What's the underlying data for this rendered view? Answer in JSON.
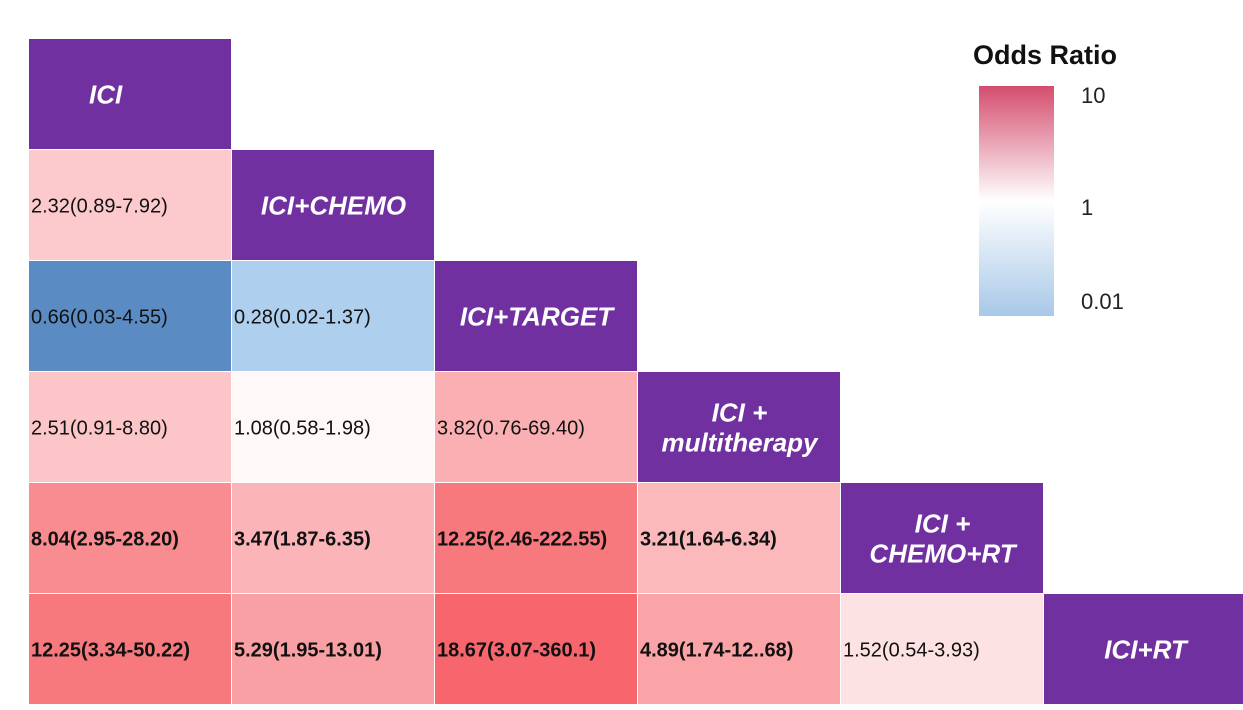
{
  "chart_data": {
    "type": "heatmap",
    "title": "",
    "treatments": [
      [
        "ICI"
      ],
      [
        "ICI+CHEMO"
      ],
      [
        "ICI+TARGET"
      ],
      [
        "ICI +",
        "multitherapy"
      ],
      [
        "ICI +",
        "CHEMO+RT"
      ],
      [
        "ICI+RT"
      ]
    ],
    "cells": [
      {
        "row": 1,
        "col": 0,
        "label": "2.32(0.89-7.92)",
        "or": 2.32,
        "bold": false
      },
      {
        "row": 2,
        "col": 0,
        "label": "0.66(0.03-4.55)",
        "or": 0.66,
        "bold": false,
        "color": "#5b8bc3"
      },
      {
        "row": 2,
        "col": 1,
        "label": "0.28(0.02-1.37)",
        "or": 0.28,
        "bold": false
      },
      {
        "row": 3,
        "col": 0,
        "label": "2.51(0.91-8.80)",
        "or": 2.51,
        "bold": false
      },
      {
        "row": 3,
        "col": 1,
        "label": "1.08(0.58-1.98)",
        "or": 1.08,
        "bold": false
      },
      {
        "row": 3,
        "col": 2,
        "label": "3.82(0.76-69.40)",
        "or": 3.82,
        "bold": false
      },
      {
        "row": 4,
        "col": 0,
        "label": "8.04(2.95-28.20)",
        "or": 8.04,
        "bold": true
      },
      {
        "row": 4,
        "col": 1,
        "label": "3.47(1.87-6.35)",
        "or": 3.47,
        "bold": true
      },
      {
        "row": 4,
        "col": 2,
        "label": "12.25(2.46-222.55)",
        "or": 12.25,
        "bold": true
      },
      {
        "row": 4,
        "col": 3,
        "label": "3.21(1.64-6.34)",
        "or": 3.21,
        "bold": true
      },
      {
        "row": 5,
        "col": 0,
        "label": "12.25(3.34-50.22)",
        "or": 12.25,
        "bold": true
      },
      {
        "row": 5,
        "col": 1,
        "label": "5.29(1.95-13.01)",
        "or": 5.29,
        "bold": true
      },
      {
        "row": 5,
        "col": 2,
        "label": "18.67(3.07-360.1)",
        "or": 18.67,
        "bold": true
      },
      {
        "row": 5,
        "col": 3,
        "label": "4.89(1.74-12..68)",
        "or": 4.89,
        "bold": true
      },
      {
        "row": 5,
        "col": 4,
        "label": "1.52(0.54-3.93)",
        "or": 1.52,
        "bold": false
      }
    ],
    "legend": {
      "title": "Odds Ratio",
      "ticks": [
        "10",
        "1",
        "0.01"
      ],
      "scale": "log"
    }
  },
  "colors": {
    "diagonal": "#7030a0",
    "high": "#d44d6e",
    "mid": "#ffffff",
    "low": "#a8c8e8",
    "cell_max": "#f6666c",
    "cell_low": "#aecfee"
  }
}
